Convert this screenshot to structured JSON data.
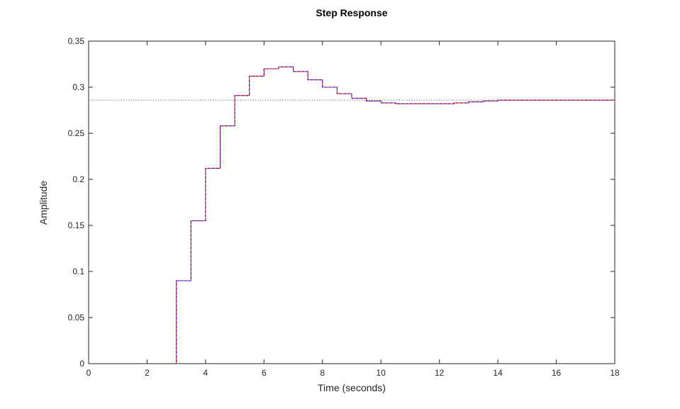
{
  "chart_data": {
    "type": "line",
    "title": "Step Response",
    "xlabel": "Time (seconds)",
    "ylabel": "Amplitude",
    "xlim": [
      0,
      18
    ],
    "ylim": [
      0,
      0.35
    ],
    "xticks": [
      "0",
      "2",
      "4",
      "6",
      "8",
      "10",
      "12",
      "14",
      "16",
      "18"
    ],
    "yticks": [
      "0",
      "0.05",
      "0.1",
      "0.15",
      "0.2",
      "0.25",
      "0.3",
      "0.35"
    ],
    "grid": false,
    "legend": "none",
    "steady_state": 0.286,
    "colors": {
      "series_a": "#ff0000",
      "series_b": "#0000ff",
      "steady_state_line": "#7f7f7f",
      "axes": "#262626"
    },
    "series": [
      {
        "style": "stairs",
        "x": [
          0,
          2,
          2.6,
          3.0,
          3.5,
          4.0,
          4.5,
          5.0,
          5.5,
          6.0,
          6.5,
          7.0,
          7.5,
          8.0,
          8.5,
          9.0,
          9.5,
          10.0,
          10.5,
          11.0,
          11.5,
          12.0,
          12.5,
          13.0,
          13.5,
          14.0,
          14.5,
          15.0,
          16.0,
          17.0,
          18.0
        ],
        "y": [
          0,
          0,
          0,
          0.09,
          0.155,
          0.212,
          0.258,
          0.291,
          0.312,
          0.32,
          0.322,
          0.317,
          0.308,
          0.3,
          0.293,
          0.288,
          0.285,
          0.283,
          0.282,
          0.282,
          0.282,
          0.282,
          0.283,
          0.284,
          0.285,
          0.286,
          0.286,
          0.286,
          0.286,
          0.286,
          0.286
        ]
      },
      {
        "style": "stairs",
        "x": [
          0,
          2,
          2.6,
          3.0,
          3.5,
          4.0,
          4.5,
          5.0,
          5.5,
          6.0,
          6.5,
          7.0,
          7.5,
          8.0,
          8.5,
          9.0,
          9.5,
          10.0,
          10.5,
          11.0,
          11.5,
          12.0,
          12.5,
          13.0,
          13.5,
          14.0,
          14.5,
          15.0,
          16.0,
          17.0,
          18.0
        ],
        "y": [
          0,
          0,
          0,
          0.09,
          0.155,
          0.212,
          0.258,
          0.291,
          0.312,
          0.32,
          0.322,
          0.317,
          0.308,
          0.3,
          0.293,
          0.288,
          0.285,
          0.283,
          0.282,
          0.282,
          0.282,
          0.282,
          0.283,
          0.284,
          0.285,
          0.286,
          0.286,
          0.286,
          0.286,
          0.286,
          0.286
        ]
      }
    ]
  }
}
